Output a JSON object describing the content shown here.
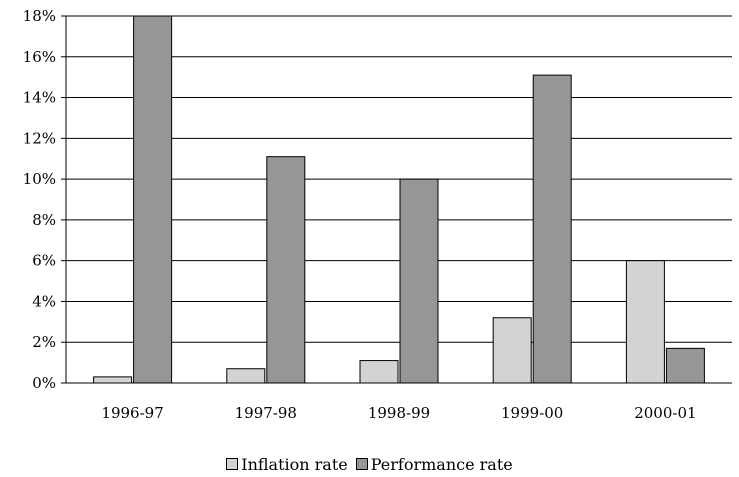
{
  "chart_data": {
    "type": "bar",
    "title": "",
    "xlabel": "",
    "ylabel": "",
    "categories": [
      "1996-97",
      "1997-98",
      "1998-99",
      "1999-00",
      "2000-01"
    ],
    "series": [
      {
        "name": "Inflation rate",
        "values": [
          0.3,
          0.7,
          1.1,
          3.2,
          6.0
        ],
        "color": "#d3d3d3"
      },
      {
        "name": "Performance rate",
        "values": [
          18.0,
          11.1,
          10.0,
          15.1,
          1.7
        ],
        "color": "#969696"
      }
    ],
    "ylim": [
      0,
      18
    ],
    "yticks": [
      "0%",
      "2%",
      "4%",
      "6%",
      "8%",
      "10%",
      "12%",
      "14%",
      "16%",
      "18%"
    ],
    "grid": true,
    "legend_position": "bottom"
  }
}
